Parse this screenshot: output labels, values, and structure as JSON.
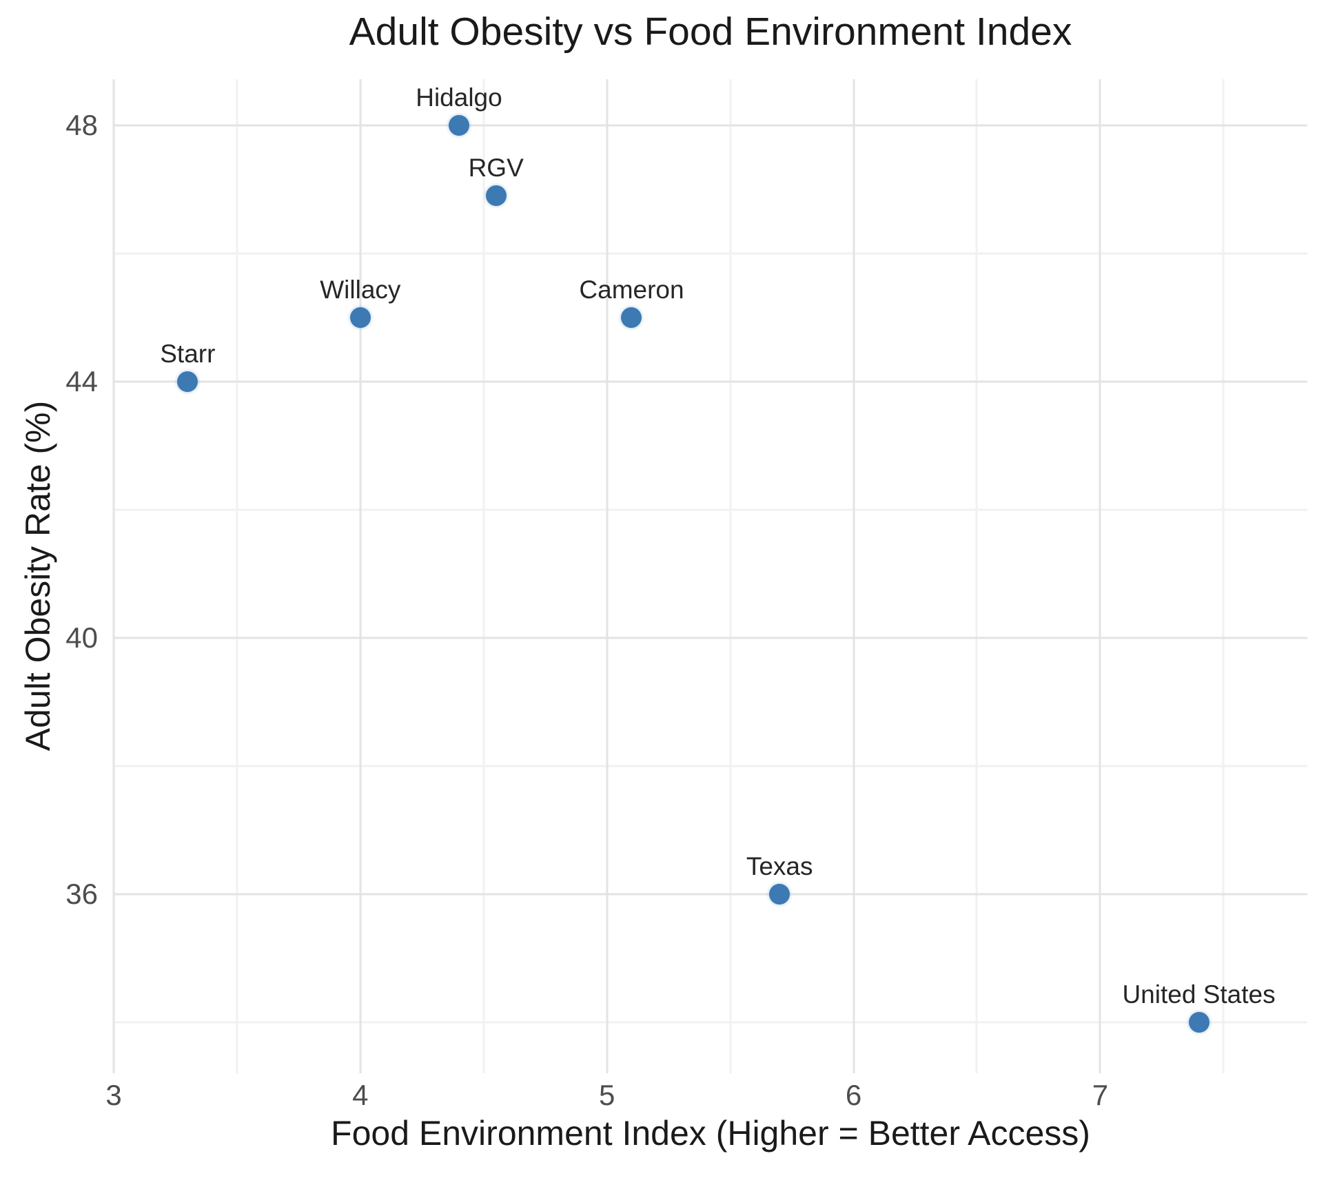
{
  "chart_data": {
    "type": "scatter",
    "title": "Adult Obesity vs Food Environment Index",
    "xlabel": "Food Environment Index (Higher = Better Access)",
    "ylabel": "Adult Obesity Rate (%)",
    "xlim": [
      3.0,
      7.84
    ],
    "ylim": [
      33.2,
      48.72
    ],
    "x_ticks": [
      3,
      4,
      5,
      6,
      7
    ],
    "y_ticks": [
      36,
      40,
      44,
      48
    ],
    "x_minor_ticks": [
      3.5,
      4.5,
      5.5,
      6.5,
      7.5
    ],
    "y_minor_ticks": [
      34,
      38,
      42,
      46
    ],
    "grid": "major and minor gridlines, light gray on white",
    "legend_position": "none",
    "points": [
      {
        "label": "Starr",
        "x": 3.3,
        "y": 44.0
      },
      {
        "label": "Willacy",
        "x": 4.0,
        "y": 45.0
      },
      {
        "label": "Hidalgo",
        "x": 4.4,
        "y": 48.0
      },
      {
        "label": "RGV",
        "x": 4.55,
        "y": 46.9
      },
      {
        "label": "Cameron",
        "x": 5.1,
        "y": 45.0
      },
      {
        "label": "Texas",
        "x": 5.7,
        "y": 36.0
      },
      {
        "label": "United States",
        "x": 7.4,
        "y": 34.0
      }
    ]
  },
  "colors": {
    "point_fill": "#3d79b2",
    "major_grid": "#e3e3e3",
    "minor_grid": "#f1f1f1",
    "tick_text": "#4d4d4d",
    "title_text": "#1a1a1a",
    "label_text": "#262626",
    "background": "#ffffff"
  }
}
